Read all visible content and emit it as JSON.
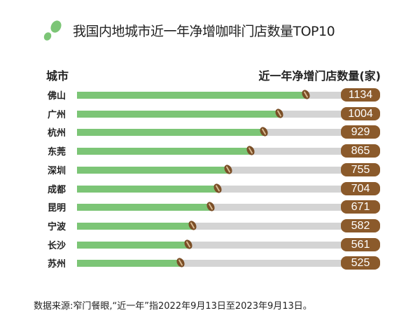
{
  "chart_data": {
    "type": "bar",
    "title": "我国内地城市近一年净增咖啡门店数量TOP10",
    "xlabel": "城市",
    "ylabel": "近一年净增门店数量(家)",
    "categories": [
      "佛山",
      "广州",
      "杭州",
      "东莞",
      "深圳",
      "成都",
      "昆明",
      "宁波",
      "长沙",
      "苏州"
    ],
    "values": [
      1134,
      1004,
      929,
      865,
      755,
      704,
      671,
      582,
      561,
      525
    ],
    "colors": {
      "fill": "#7cc576",
      "track": "#d4d4d4",
      "badge": "#8b5a2b"
    }
  },
  "footnote": "数据来源:窄门餐眼,“近一年”指2022年9月13日至2023年9月13日。"
}
